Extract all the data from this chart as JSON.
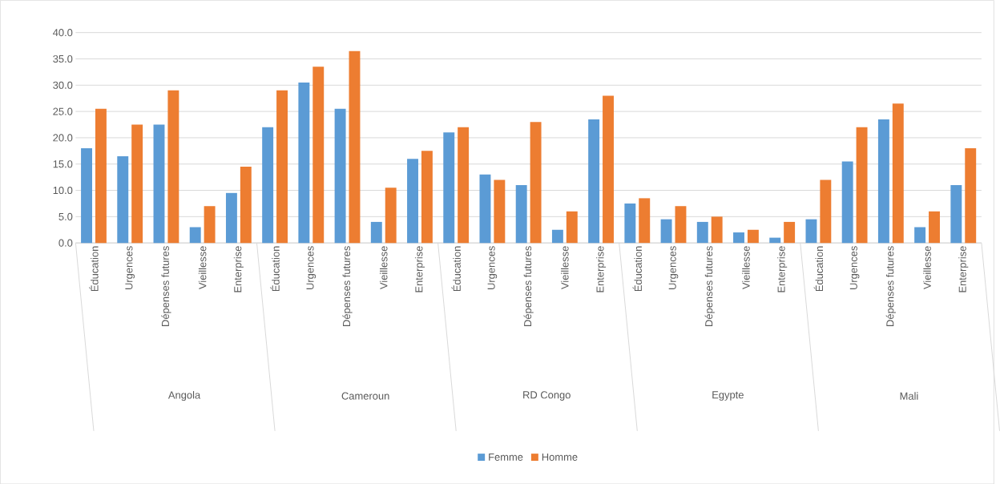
{
  "chart_data": {
    "type": "bar",
    "categories": [
      "Éducation",
      "Urgences",
      "Dépenses futures",
      "Vieillesse",
      "Enterprise",
      "Éducation",
      "Urgences",
      "Dépenses futures",
      "Vieillesse",
      "Enterprise",
      "Éducation",
      "Urgences",
      "Dépenses futures",
      "Vieillesse",
      "Enterprise",
      "Éducation",
      "Urgences",
      "Dépenses futures",
      "Vieillesse",
      "Enterprise",
      "Éducation",
      "Urgences",
      "Dépenses futures",
      "Vieillesse",
      "Enterprise"
    ],
    "annotations": [
      "Angola",
      "Cameroun",
      "RD Congo",
      "Egypte",
      "Mali"
    ],
    "series": [
      {
        "name": "Femme",
        "color": "#5b9bd5",
        "values": [
          18,
          16.5,
          22.5,
          3,
          9.5,
          22,
          30.5,
          25.5,
          4,
          16,
          21,
          13,
          11,
          2.5,
          23.5,
          7.5,
          4.5,
          4,
          2,
          1,
          4.5,
          15.5,
          23.5,
          3,
          11
        ]
      },
      {
        "name": "Homme",
        "color": "#ed7d31",
        "values": [
          25.5,
          22.5,
          29,
          7,
          14.5,
          29,
          33.5,
          36.5,
          10.5,
          17.5,
          22,
          12,
          23,
          6,
          28,
          8.5,
          7,
          5,
          2.5,
          4,
          12,
          22,
          26.5,
          6,
          18
        ]
      }
    ],
    "ylim": [
      0,
      40
    ],
    "yticks": [
      {
        "value": 0,
        "label": "0.0"
      },
      {
        "value": 5,
        "label": "5.0"
      },
      {
        "value": 10,
        "label": "10.0"
      },
      {
        "value": 15,
        "label": "15.0"
      },
      {
        "value": 20,
        "label": "20.0"
      },
      {
        "value": 25,
        "label": "25.0"
      },
      {
        "value": 30,
        "label": "30.0"
      },
      {
        "value": 35,
        "label": "35.0"
      },
      {
        "value": 40,
        "label": "40.0"
      }
    ],
    "grid": "y",
    "legend": "bottom"
  }
}
